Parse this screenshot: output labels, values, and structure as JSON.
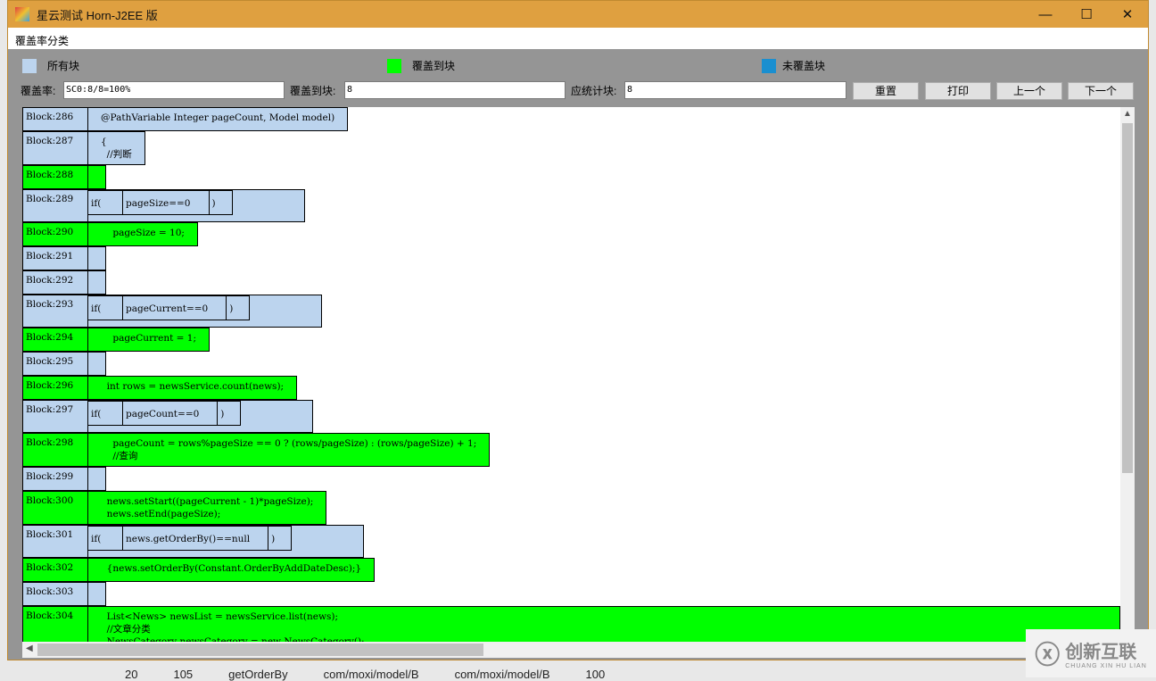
{
  "window": {
    "title": "星云测试 Horn-J2EE 版",
    "minimize": "—",
    "maximize": "☐",
    "close": "✕"
  },
  "menu": {
    "item": "覆盖率分类"
  },
  "legend": [
    {
      "label": "所有块",
      "color": "#bcd4ee"
    },
    {
      "label": "覆盖到块",
      "color": "#00ff00"
    },
    {
      "label": "未覆盖块",
      "color": "#1a8fd0"
    }
  ],
  "fields": {
    "coverage_label": "覆盖率:",
    "coverage_value": "SC0:8/8=100%",
    "covered_label": "覆盖到块:",
    "covered_value": "8",
    "total_label": "应统计块:",
    "total_value": "8"
  },
  "buttons": {
    "reset": "重置",
    "print": "打印",
    "prev": "上一个",
    "next": "下一个"
  },
  "blocks": [
    {
      "label": "Block:286",
      "covered": false,
      "text": "@PathVariable Integer pageCount, Model model)"
    },
    {
      "label": "Block:287",
      "covered": false,
      "text": "{\n  //判断"
    },
    {
      "label": "Block:288",
      "covered": true,
      "text": ""
    },
    {
      "label": "Block:289",
      "covered": false,
      "if": "pageSize==0"
    },
    {
      "label": "Block:290",
      "covered": true,
      "text": "    pageSize = 10;"
    },
    {
      "label": "Block:291",
      "covered": false,
      "text": ""
    },
    {
      "label": "Block:292",
      "covered": false,
      "text": ""
    },
    {
      "label": "Block:293",
      "covered": false,
      "if": "pageCurrent==0"
    },
    {
      "label": "Block:294",
      "covered": true,
      "text": "    pageCurrent = 1;"
    },
    {
      "label": "Block:295",
      "covered": false,
      "text": ""
    },
    {
      "label": "Block:296",
      "covered": true,
      "text": "  int rows = newsService.count(news);"
    },
    {
      "label": "Block:297",
      "covered": false,
      "if": "pageCount==0"
    },
    {
      "label": "Block:298",
      "covered": true,
      "text": "    pageCount = rows%pageSize == 0 ? (rows/pageSize) : (rows/pageSize) + 1;\n    //查询"
    },
    {
      "label": "Block:299",
      "covered": false,
      "text": ""
    },
    {
      "label": "Block:300",
      "covered": true,
      "text": "  news.setStart((pageCurrent - 1)*pageSize);\n  news.setEnd(pageSize);"
    },
    {
      "label": "Block:301",
      "covered": false,
      "if": "news.getOrderBy()==null"
    },
    {
      "label": "Block:302",
      "covered": true,
      "text": "  {news.setOrderBy(Constant.OrderByAddDateDesc);}"
    },
    {
      "label": "Block:303",
      "covered": false,
      "text": ""
    },
    {
      "label": "Block:304",
      "covered": true,
      "full": true,
      "text": "  List<News> newsList = newsService.list(news);\n  //文章分类\n  NewsCategory newsCategory = new NewsCategory();"
    }
  ],
  "if_open": "if(",
  "if_close": ")",
  "watermark": {
    "name": "创新互联",
    "sub": "CHUANG XIN HU LIAN"
  },
  "background_row": [
    "20",
    "105",
    "getOrderBy",
    "com/moxi/model/B",
    "com/moxi/model/B",
    "100"
  ]
}
